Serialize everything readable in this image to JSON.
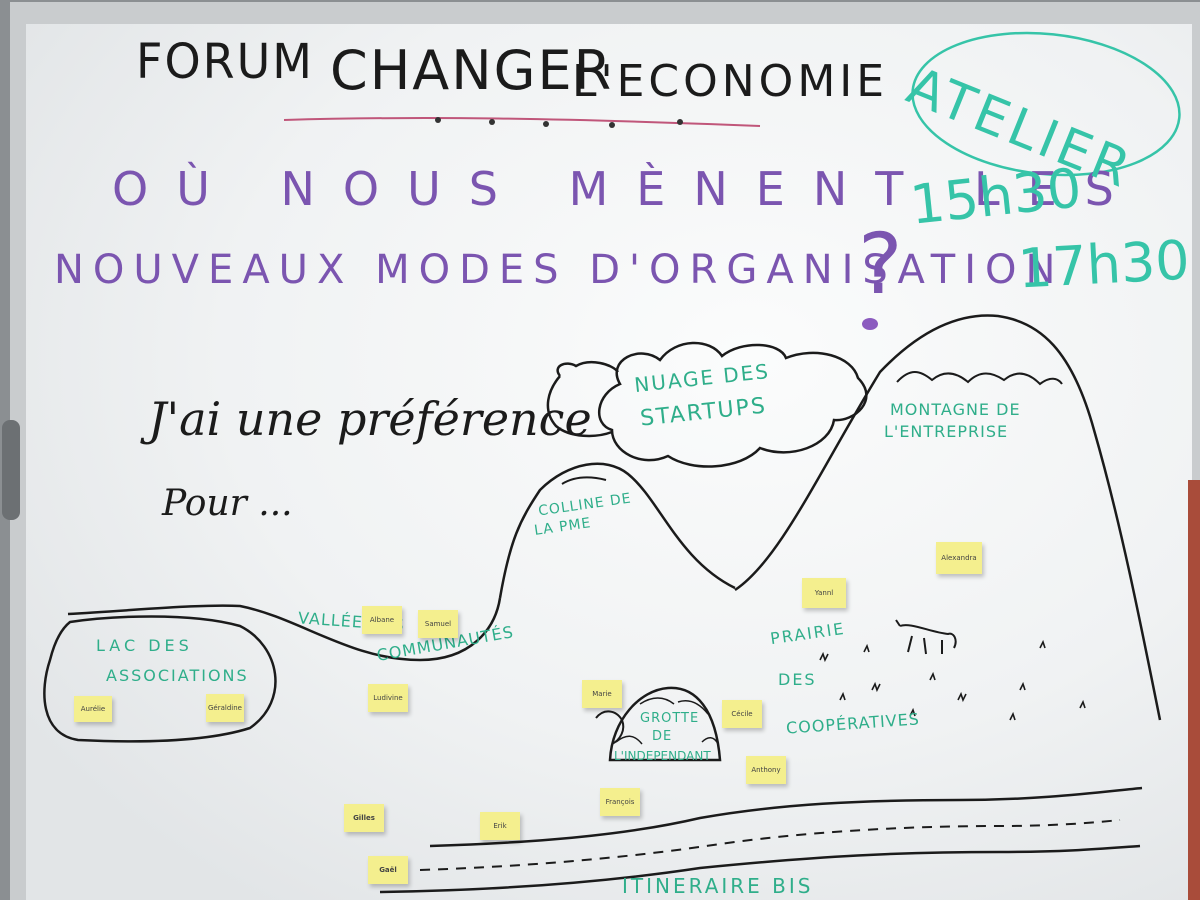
{
  "board": {
    "title_line1_a": "Forum",
    "title_line1_b": "Changer",
    "title_line1_c": "L'economie",
    "question_line1": "Où nous mènent les",
    "question_line2": "nouveaux modes d'organisation",
    "question_mark": "?",
    "badge": "Atelier",
    "time1": "15h30",
    "time2": "17h30",
    "preference_line1": "J'ai une préférence",
    "preference_line2": "Pour ...",
    "zones": {
      "cloud": [
        "Nuage des",
        "Startups"
      ],
      "mountain": [
        "Montagne de",
        "l'entreprise"
      ],
      "hill": [
        "Colline de",
        "la PME"
      ],
      "lake": [
        "Lac des",
        "associations"
      ],
      "valley_a": "Vallée des",
      "valley_b": "Communautés",
      "prairie": [
        "Prairie",
        "des",
        "Coopératives"
      ],
      "cave": [
        "Grotte",
        "de",
        "l'independant"
      ],
      "road": "Itineraire bis"
    }
  },
  "stickies": [
    {
      "name": "Alexandra",
      "id": "sticky-alexandra"
    },
    {
      "name": "Yannl",
      "id": "sticky-yannl"
    },
    {
      "name": "Albane",
      "id": "sticky-albane"
    },
    {
      "name": "Samuel",
      "id": "sticky-samuel"
    },
    {
      "name": "Ludivine",
      "id": "sticky-ludivine"
    },
    {
      "name": "Aurélie",
      "id": "sticky-aurelie"
    },
    {
      "name": "Géraldine",
      "id": "sticky-geraldine"
    },
    {
      "name": "Marie",
      "id": "sticky-marie"
    },
    {
      "name": "Cécile",
      "id": "sticky-cecile"
    },
    {
      "name": "Anthony",
      "id": "sticky-anthony"
    },
    {
      "name": "François",
      "id": "sticky-francois"
    },
    {
      "name": "Gilles",
      "id": "sticky-gilles"
    },
    {
      "name": "Erik",
      "id": "sticky-erik"
    },
    {
      "name": "Gaël",
      "id": "sticky-gael"
    }
  ],
  "colors": {
    "board": "#f2f4f5",
    "frame": "#c9ccce",
    "marker_black": "#1b1b1b",
    "marker_purple": "#7b55b0",
    "marker_green": "#2fae8a",
    "sticky": "#f4ef8e"
  }
}
